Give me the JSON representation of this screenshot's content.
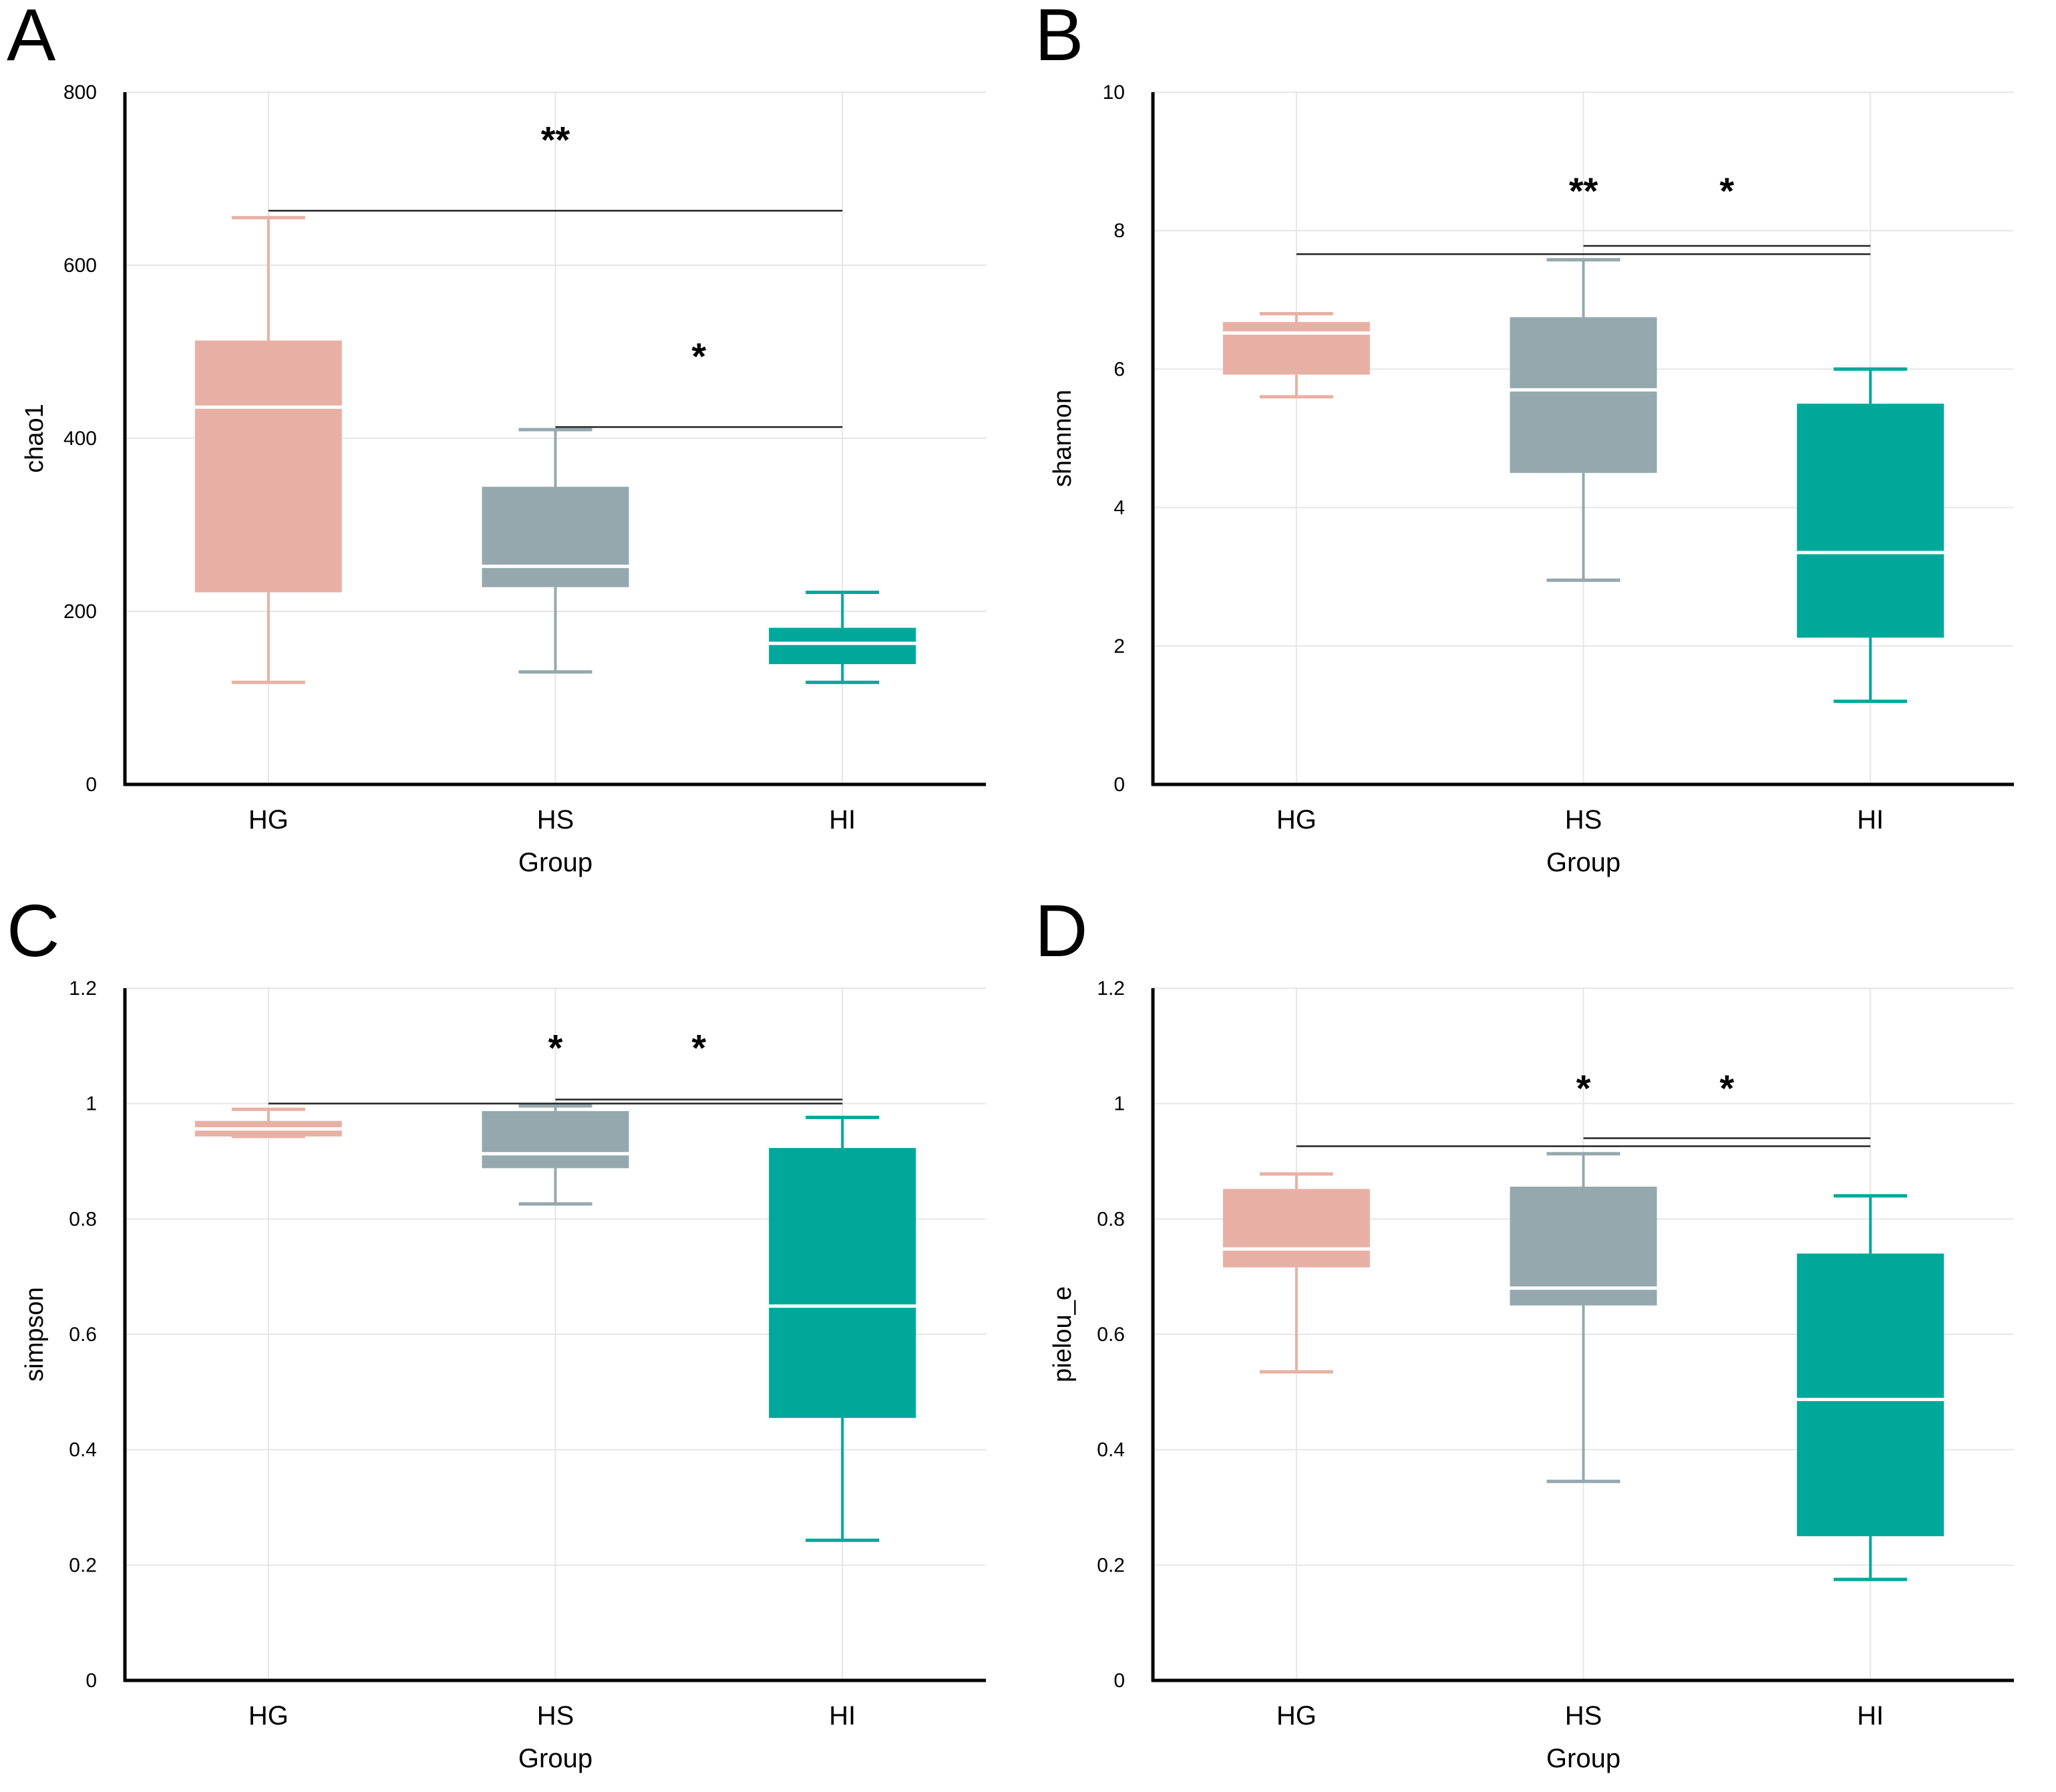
{
  "colors": {
    "HG": "#e8b0a4",
    "HS": "#95a8ae",
    "HI": "#00a89a",
    "median": "#ffffff",
    "grid": "#e6e6e6",
    "axis": "#000000",
    "bracket": "#222222"
  },
  "chart_data": [
    {
      "panel_label": "A",
      "type": "boxplot",
      "xlabel": "Group",
      "ylabel": "chao1",
      "categories": [
        "HG",
        "HS",
        "HI"
      ],
      "ylim": [
        0,
        800
      ],
      "yticks": [
        0,
        200,
        400,
        600,
        800
      ],
      "ytick_labels": [
        "0",
        "200",
        "400",
        "600",
        "800"
      ],
      "boxes": [
        {
          "group": "HG",
          "whisker_low": 118,
          "q1": 222,
          "median": 436,
          "q3": 513,
          "whisker_high": 655
        },
        {
          "group": "HS",
          "whisker_low": 130,
          "q1": 228,
          "median": 252,
          "q3": 344,
          "whisker_high": 410
        },
        {
          "group": "HI",
          "whisker_low": 118,
          "q1": 139,
          "median": 163,
          "q3": 181,
          "whisker_high": 222
        }
      ],
      "significance": [
        {
          "from": "HG",
          "to": "HI",
          "y": 663,
          "label": "**",
          "label_at": "HS",
          "label_y": 747
        },
        {
          "from": "HS",
          "to": "HI",
          "y": 413,
          "label": "*",
          "label_at": "HS-HI",
          "label_y": 497
        }
      ]
    },
    {
      "panel_label": "B",
      "type": "boxplot",
      "xlabel": "Group",
      "ylabel": "shannon",
      "categories": [
        "HG",
        "HS",
        "HI"
      ],
      "ylim": [
        0,
        10
      ],
      "yticks": [
        0,
        2,
        4,
        6,
        8,
        10
      ],
      "ytick_labels": [
        "0",
        "2",
        "4",
        "6",
        "8",
        "10"
      ],
      "boxes": [
        {
          "group": "HG",
          "whisker_low": 5.6,
          "q1": 5.92,
          "median": 6.52,
          "q3": 6.68,
          "whisker_high": 6.8
        },
        {
          "group": "HS",
          "whisker_low": 2.95,
          "q1": 4.5,
          "median": 5.7,
          "q3": 6.75,
          "whisker_high": 7.58
        },
        {
          "group": "HI",
          "whisker_low": 1.2,
          "q1": 2.12,
          "median": 3.35,
          "q3": 5.5,
          "whisker_high": 6.0
        }
      ],
      "significance": [
        {
          "from": "HG",
          "to": "HI",
          "y": 7.66,
          "label": "**",
          "label_at": "HS",
          "label_y": 8.6
        },
        {
          "from": "HS",
          "to": "HI",
          "y": 7.78,
          "label": "*",
          "label_at": "HS-HI",
          "label_y": 8.6
        }
      ]
    },
    {
      "panel_label": "C",
      "type": "boxplot",
      "xlabel": "Group",
      "ylabel": "simpson",
      "categories": [
        "HG",
        "HS",
        "HI"
      ],
      "ylim": [
        0,
        1.2
      ],
      "yticks": [
        0,
        0.2,
        0.4,
        0.6,
        0.8,
        1,
        1.2
      ],
      "ytick_labels": [
        "0",
        "0.2",
        "0.4",
        "0.6",
        "0.8",
        "1",
        "1.2"
      ],
      "boxes": [
        {
          "group": "HG",
          "whisker_low": 0.943,
          "q1": 0.943,
          "median": 0.956,
          "q3": 0.97,
          "whisker_high": 0.99
        },
        {
          "group": "HS",
          "whisker_low": 0.826,
          "q1": 0.888,
          "median": 0.913,
          "q3": 0.987,
          "whisker_high": 0.996
        },
        {
          "group": "HI",
          "whisker_low": 0.243,
          "q1": 0.455,
          "median": 0.649,
          "q3": 0.923,
          "whisker_high": 0.976
        }
      ],
      "significance": [
        {
          "from": "HG",
          "to": "HI",
          "y": 1.0,
          "label": "*",
          "label_at": "HS",
          "label_y": 1.1
        },
        {
          "from": "HS",
          "to": "HI",
          "y": 1.007,
          "label": "*",
          "label_at": "HS-HI",
          "label_y": 1.1
        }
      ]
    },
    {
      "panel_label": "D",
      "type": "boxplot",
      "xlabel": "Group",
      "ylabel": "pielou_e",
      "categories": [
        "HG",
        "HS",
        "HI"
      ],
      "ylim": [
        0,
        1.2
      ],
      "yticks": [
        0,
        0.2,
        0.4,
        0.6,
        0.8,
        1,
        1.2
      ],
      "ytick_labels": [
        "0",
        "0.2",
        "0.4",
        "0.6",
        "0.8",
        "1",
        "1.2"
      ],
      "boxes": [
        {
          "group": "HG",
          "whisker_low": 0.535,
          "q1": 0.716,
          "median": 0.748,
          "q3": 0.852,
          "whisker_high": 0.878
        },
        {
          "group": "HS",
          "whisker_low": 0.345,
          "q1": 0.65,
          "median": 0.68,
          "q3": 0.856,
          "whisker_high": 0.913
        },
        {
          "group": "HI",
          "whisker_low": 0.175,
          "q1": 0.25,
          "median": 0.487,
          "q3": 0.74,
          "whisker_high": 0.84
        }
      ],
      "significance": [
        {
          "from": "HG",
          "to": "HI",
          "y": 0.926,
          "label": "*",
          "label_at": "HS",
          "label_y": 1.03
        },
        {
          "from": "HS",
          "to": "HI",
          "y": 0.94,
          "label": "*",
          "label_at": "HS-HI",
          "label_y": 1.03
        }
      ]
    }
  ]
}
